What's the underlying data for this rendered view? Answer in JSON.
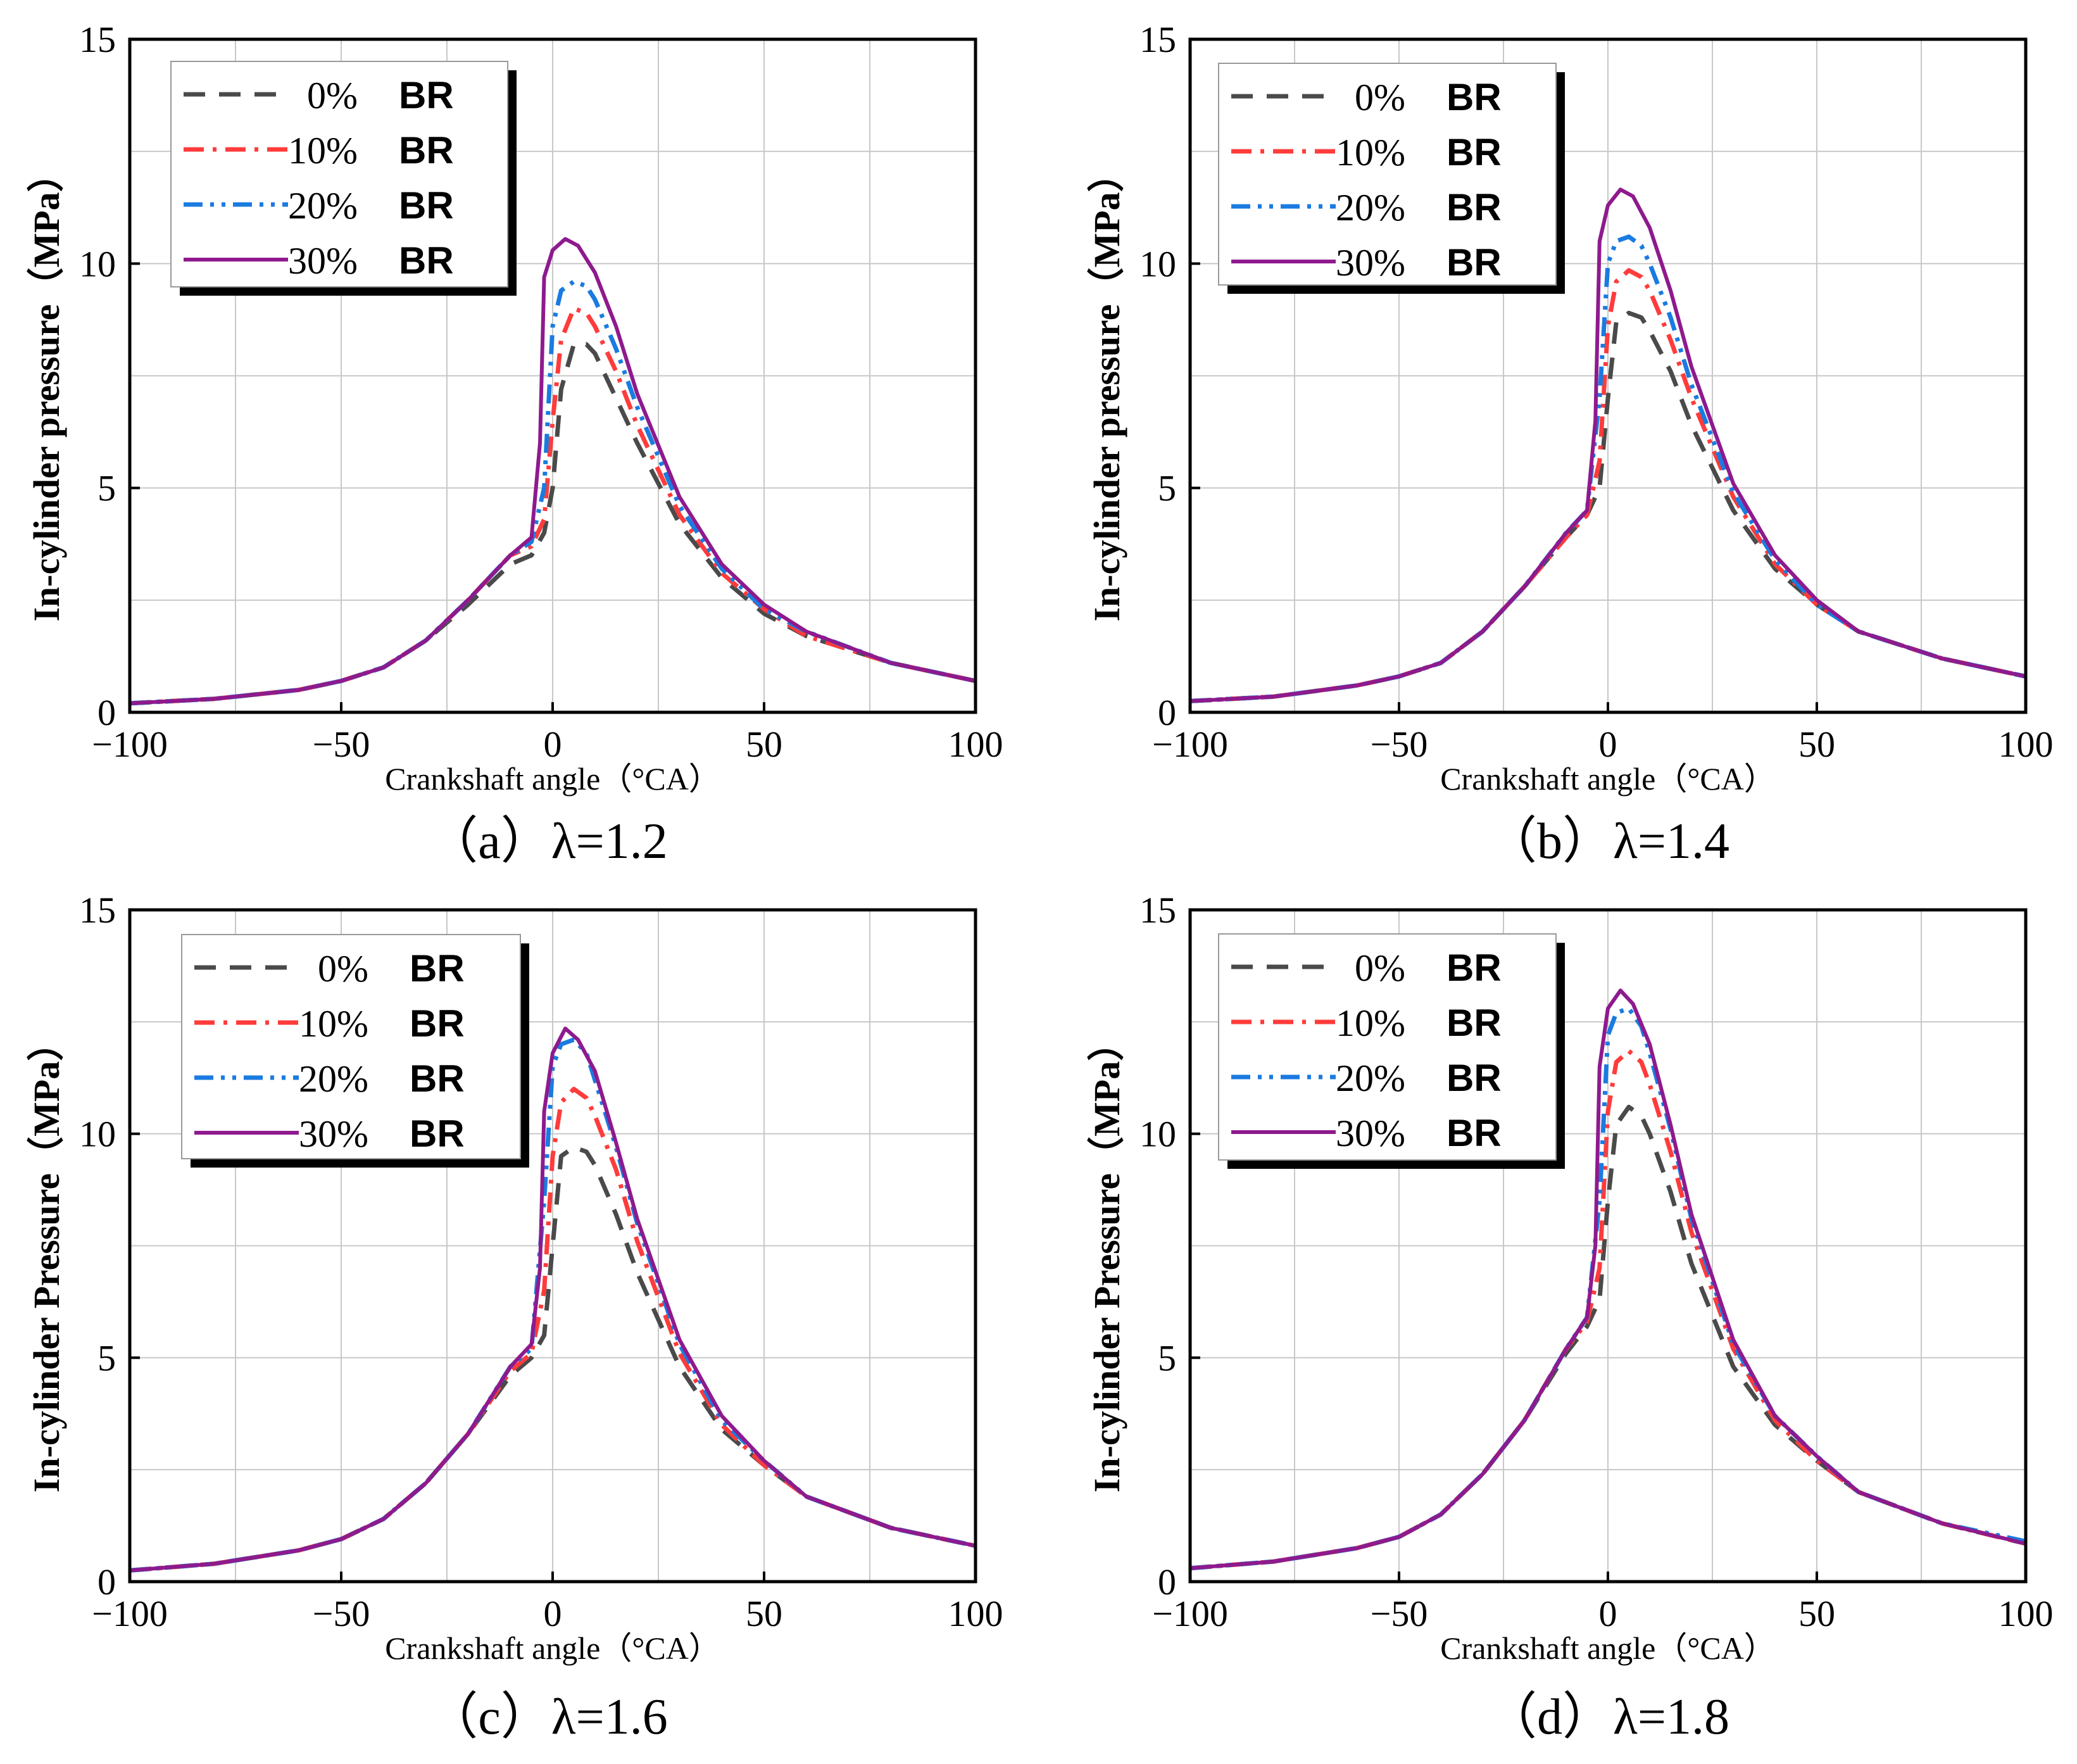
{
  "figure": {
    "panels": [
      {
        "id": "a",
        "caption": "（a）λ=1.2",
        "xlabel": "Crankshaft angle（°CA）",
        "ylabel": "In-cylinder pressure（MPa）"
      },
      {
        "id": "b",
        "caption": "（b）λ=1.4",
        "xlabel": "Crankshaft angle（°CA）",
        "ylabel": "In-cylinder pressure（MPa）"
      },
      {
        "id": "c",
        "caption": "（c）λ=1.6",
        "xlabel": "Crankshaft angle（°CA）",
        "ylabel": "In-cylinder Pressure（MPa）"
      },
      {
        "id": "d",
        "caption": "（d）λ=1.8",
        "xlabel": "Crankshaft angle（°CA）",
        "ylabel": "In-cylinder Pressure（MPa）"
      }
    ]
  },
  "legend_items": [
    {
      "pct": "0%",
      "br": "BR",
      "color": "#4a4a4a",
      "style": "dash"
    },
    {
      "pct": "10%",
      "br": "BR",
      "color": "#ff3b3b",
      "style": "dashdot"
    },
    {
      "pct": "20%",
      "br": "BR",
      "color": "#1a7be0",
      "style": "dashdotdot"
    },
    {
      "pct": "30%",
      "br": "BR",
      "color": "#8e1a8e",
      "style": "solid"
    }
  ],
  "chart_data": [
    {
      "type": "line",
      "title": "（a）λ=1.2",
      "xlabel": "Crankshaft angle（°CA）",
      "ylabel": "In-cylinder pressure（MPa）",
      "xlim": [
        -100,
        100
      ],
      "ylim": [
        0,
        15
      ],
      "xticks": [
        -100,
        -50,
        0,
        50,
        100
      ],
      "yticks": [
        0,
        5,
        10,
        15
      ],
      "grid": true,
      "legend": "top-left",
      "series": [
        {
          "name": "0% BR",
          "x": [
            -100,
            -80,
            -60,
            -50,
            -40,
            -30,
            -20,
            -10,
            -5,
            -2,
            0,
            2,
            5,
            8,
            10,
            15,
            20,
            30,
            40,
            50,
            60,
            80,
            100
          ],
          "y": [
            0.2,
            0.3,
            0.5,
            0.7,
            1.0,
            1.6,
            2.4,
            3.3,
            3.5,
            4.0,
            5.0,
            7.2,
            8.2,
            8.2,
            8.0,
            7.0,
            6.0,
            4.2,
            3.0,
            2.2,
            1.7,
            1.1,
            0.7
          ]
        },
        {
          "name": "10% BR",
          "x": [
            -100,
            -80,
            -60,
            -50,
            -40,
            -30,
            -20,
            -10,
            -5,
            -2,
            0,
            2,
            5,
            8,
            10,
            15,
            20,
            30,
            40,
            50,
            60,
            80,
            100
          ],
          "y": [
            0.2,
            0.3,
            0.5,
            0.7,
            1.0,
            1.6,
            2.5,
            3.5,
            3.7,
            4.3,
            6.5,
            8.3,
            9.0,
            8.9,
            8.6,
            7.6,
            6.4,
            4.4,
            3.1,
            2.3,
            1.7,
            1.1,
            0.7
          ]
        },
        {
          "name": "20% BR",
          "x": [
            -100,
            -80,
            -60,
            -50,
            -40,
            -30,
            -20,
            -10,
            -5,
            -2,
            0,
            2,
            5,
            8,
            10,
            15,
            20,
            30,
            40,
            50,
            60,
            80,
            100
          ],
          "y": [
            0.2,
            0.3,
            0.5,
            0.7,
            1.0,
            1.6,
            2.5,
            3.5,
            3.8,
            5.0,
            8.6,
            9.4,
            9.6,
            9.5,
            9.2,
            8.1,
            6.8,
            4.6,
            3.2,
            2.3,
            1.8,
            1.1,
            0.7
          ]
        },
        {
          "name": "30% BR",
          "x": [
            -100,
            -80,
            -60,
            -50,
            -40,
            -30,
            -20,
            -10,
            -5,
            -3,
            -2,
            0,
            3,
            6,
            10,
            15,
            20,
            30,
            40,
            50,
            60,
            80,
            100
          ],
          "y": [
            0.2,
            0.3,
            0.5,
            0.7,
            1.0,
            1.6,
            2.5,
            3.5,
            3.9,
            6.0,
            9.7,
            10.3,
            10.55,
            10.4,
            9.8,
            8.6,
            7.1,
            4.8,
            3.3,
            2.4,
            1.8,
            1.1,
            0.7
          ]
        }
      ]
    },
    {
      "type": "line",
      "title": "（b）λ=1.4",
      "xlabel": "Crankshaft angle（°CA）",
      "ylabel": "In-cylinder pressure（MPa）",
      "xlim": [
        -100,
        100
      ],
      "ylim": [
        0,
        15
      ],
      "xticks": [
        -100,
        -50,
        0,
        50,
        100
      ],
      "yticks": [
        0,
        5,
        10,
        15
      ],
      "grid": true,
      "legend": "top-left",
      "series": [
        {
          "name": "0% BR",
          "x": [
            -100,
            -80,
            -60,
            -50,
            -40,
            -30,
            -20,
            -10,
            -5,
            -2,
            0,
            2,
            5,
            8,
            10,
            15,
            20,
            30,
            40,
            50,
            60,
            80,
            100
          ],
          "y": [
            0.25,
            0.35,
            0.6,
            0.8,
            1.1,
            1.8,
            2.8,
            3.9,
            4.4,
            5.0,
            7.0,
            8.7,
            8.9,
            8.8,
            8.5,
            7.6,
            6.4,
            4.5,
            3.2,
            2.4,
            1.8,
            1.2,
            0.8
          ]
        },
        {
          "name": "10% BR",
          "x": [
            -100,
            -80,
            -60,
            -50,
            -40,
            -30,
            -20,
            -10,
            -5,
            -2,
            0,
            2,
            5,
            8,
            10,
            15,
            20,
            30,
            40,
            50,
            60,
            80,
            100
          ],
          "y": [
            0.25,
            0.35,
            0.6,
            0.8,
            1.1,
            1.8,
            2.8,
            3.9,
            4.4,
            5.6,
            8.6,
            9.6,
            9.85,
            9.7,
            9.4,
            8.3,
            7.0,
            4.8,
            3.3,
            2.4,
            1.8,
            1.2,
            0.8
          ]
        },
        {
          "name": "20% BR",
          "x": [
            -100,
            -80,
            -60,
            -50,
            -40,
            -30,
            -20,
            -10,
            -5,
            -2,
            0,
            2,
            5,
            8,
            10,
            15,
            20,
            30,
            40,
            50,
            60,
            80,
            100
          ],
          "y": [
            0.25,
            0.35,
            0.6,
            0.8,
            1.1,
            1.8,
            2.8,
            4.0,
            4.5,
            7.0,
            10.0,
            10.5,
            10.6,
            10.4,
            10.0,
            8.8,
            7.3,
            4.9,
            3.4,
            2.4,
            1.8,
            1.2,
            0.8
          ]
        },
        {
          "name": "30% BR",
          "x": [
            -100,
            -80,
            -60,
            -50,
            -40,
            -30,
            -20,
            -10,
            -5,
            -3,
            -2,
            0,
            3,
            6,
            10,
            15,
            20,
            30,
            40,
            50,
            60,
            80,
            100
          ],
          "y": [
            0.25,
            0.35,
            0.6,
            0.8,
            1.1,
            1.8,
            2.8,
            4.0,
            4.5,
            6.5,
            10.5,
            11.3,
            11.65,
            11.5,
            10.8,
            9.4,
            7.7,
            5.1,
            3.5,
            2.5,
            1.8,
            1.2,
            0.8
          ]
        }
      ]
    },
    {
      "type": "line",
      "title": "（c）λ=1.6",
      "xlabel": "Crankshaft angle（°CA）",
      "ylabel": "In-cylinder Pressure（MPa）",
      "xlim": [
        -100,
        100
      ],
      "ylim": [
        0,
        15
      ],
      "xticks": [
        -100,
        -50,
        0,
        50,
        100
      ],
      "yticks": [
        0,
        5,
        10,
        15
      ],
      "grid": true,
      "legend": "top-left",
      "series": [
        {
          "name": "0% BR",
          "x": [
            -100,
            -80,
            -60,
            -50,
            -40,
            -30,
            -20,
            -10,
            -5,
            -2,
            0,
            2,
            5,
            8,
            10,
            15,
            20,
            30,
            40,
            50,
            60,
            80,
            100
          ],
          "y": [
            0.25,
            0.4,
            0.7,
            0.95,
            1.4,
            2.2,
            3.3,
            4.6,
            5.0,
            5.5,
            7.5,
            9.5,
            9.7,
            9.6,
            9.3,
            8.2,
            6.9,
            4.8,
            3.4,
            2.6,
            1.9,
            1.2,
            0.8
          ]
        },
        {
          "name": "10% BR",
          "x": [
            -100,
            -80,
            -60,
            -50,
            -40,
            -30,
            -20,
            -10,
            -5,
            -2,
            0,
            2,
            5,
            8,
            10,
            15,
            20,
            30,
            40,
            50,
            60,
            80,
            100
          ],
          "y": [
            0.25,
            0.4,
            0.7,
            0.95,
            1.4,
            2.2,
            3.3,
            4.7,
            5.1,
            6.5,
            9.5,
            10.7,
            11.0,
            10.8,
            10.4,
            9.2,
            7.6,
            5.1,
            3.5,
            2.6,
            1.9,
            1.2,
            0.8
          ]
        },
        {
          "name": "20% BR",
          "x": [
            -100,
            -80,
            -60,
            -50,
            -40,
            -30,
            -20,
            -10,
            -5,
            -2,
            0,
            2,
            5,
            8,
            10,
            15,
            20,
            30,
            40,
            50,
            60,
            80,
            100
          ],
          "y": [
            0.25,
            0.4,
            0.7,
            0.95,
            1.4,
            2.2,
            3.3,
            4.8,
            5.2,
            8.5,
            11.5,
            12.0,
            12.1,
            11.8,
            11.2,
            9.7,
            8.0,
            5.3,
            3.6,
            2.7,
            1.9,
            1.2,
            0.8
          ]
        },
        {
          "name": "30% BR",
          "x": [
            -100,
            -80,
            -60,
            -50,
            -40,
            -30,
            -20,
            -10,
            -5,
            -3,
            -2,
            0,
            3,
            6,
            10,
            15,
            20,
            30,
            40,
            50,
            60,
            80,
            100
          ],
          "y": [
            0.25,
            0.4,
            0.7,
            0.95,
            1.4,
            2.2,
            3.3,
            4.8,
            5.3,
            7.0,
            10.5,
            11.8,
            12.35,
            12.1,
            11.4,
            9.8,
            8.1,
            5.4,
            3.7,
            2.7,
            1.9,
            1.2,
            0.8
          ]
        }
      ]
    },
    {
      "type": "line",
      "title": "（d）λ=1.8",
      "xlabel": "Crankshaft angle（°CA）",
      "ylabel": "In-cylinder Pressure（MPa）",
      "xlim": [
        -100,
        100
      ],
      "ylim": [
        0,
        15
      ],
      "xticks": [
        -100,
        -50,
        0,
        50,
        100
      ],
      "yticks": [
        0,
        5,
        10,
        15
      ],
      "grid": true,
      "legend": "top-left",
      "series": [
        {
          "name": "0% BR",
          "x": [
            -100,
            -80,
            -60,
            -50,
            -40,
            -30,
            -20,
            -10,
            -5,
            -2,
            0,
            2,
            5,
            8,
            10,
            15,
            20,
            30,
            40,
            50,
            60,
            80,
            100
          ],
          "y": [
            0.3,
            0.45,
            0.75,
            1.0,
            1.5,
            2.4,
            3.6,
            5.1,
            5.7,
            6.3,
            8.5,
            10.2,
            10.6,
            10.4,
            10.0,
            8.7,
            7.1,
            4.8,
            3.5,
            2.7,
            2.0,
            1.3,
            0.85
          ]
        },
        {
          "name": "10% BR",
          "x": [
            -100,
            -80,
            -60,
            -50,
            -40,
            -30,
            -20,
            -10,
            -5,
            -2,
            0,
            2,
            5,
            8,
            10,
            15,
            20,
            30,
            40,
            50,
            60,
            80,
            100
          ],
          "y": [
            0.3,
            0.45,
            0.75,
            1.0,
            1.5,
            2.4,
            3.6,
            5.2,
            5.8,
            7.0,
            10.5,
            11.6,
            11.85,
            11.6,
            11.1,
            9.6,
            7.8,
            5.2,
            3.6,
            2.7,
            2.0,
            1.3,
            0.85
          ]
        },
        {
          "name": "20% BR",
          "x": [
            -100,
            -80,
            -60,
            -50,
            -40,
            -30,
            -20,
            -10,
            -5,
            -2,
            0,
            2,
            5,
            8,
            10,
            15,
            20,
            30,
            40,
            50,
            60,
            80,
            100
          ],
          "y": [
            0.3,
            0.45,
            0.75,
            1.0,
            1.5,
            2.4,
            3.6,
            5.2,
            5.9,
            8.5,
            12.2,
            12.7,
            12.8,
            12.4,
            11.8,
            10.1,
            8.1,
            5.3,
            3.7,
            2.8,
            2.0,
            1.3,
            0.9
          ]
        },
        {
          "name": "30% BR",
          "x": [
            -100,
            -80,
            -60,
            -50,
            -40,
            -30,
            -20,
            -10,
            -5,
            -3,
            -2,
            0,
            3,
            6,
            10,
            15,
            20,
            30,
            40,
            50,
            60,
            80,
            100
          ],
          "y": [
            0.3,
            0.45,
            0.75,
            1.0,
            1.5,
            2.4,
            3.6,
            5.2,
            5.9,
            7.5,
            11.5,
            12.8,
            13.2,
            12.9,
            12.0,
            10.2,
            8.2,
            5.4,
            3.7,
            2.8,
            2.0,
            1.3,
            0.85
          ]
        }
      ]
    }
  ]
}
